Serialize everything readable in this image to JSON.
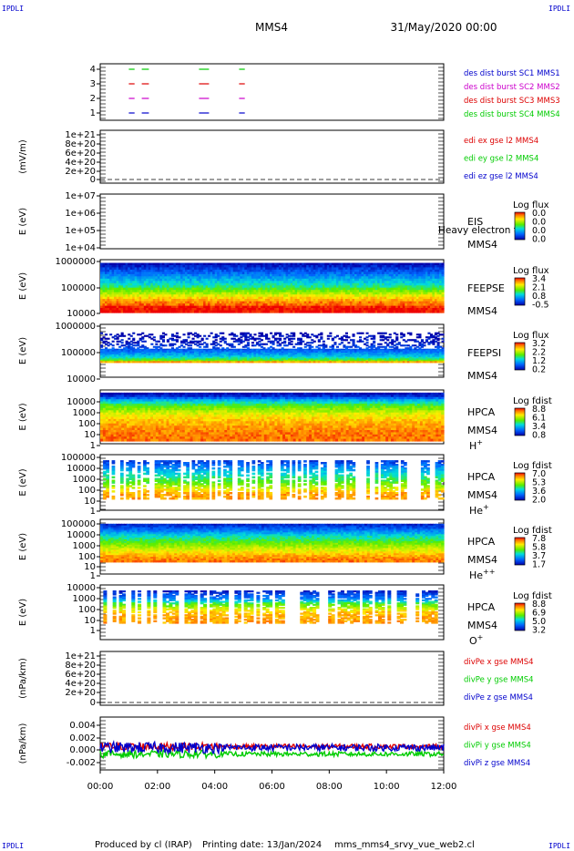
{
  "corner_tag": "IPDLI",
  "header": {
    "spacecraft": "MMS4",
    "date": "31/May/2020 00:00"
  },
  "footer": {
    "produced_by": "Produced by cl (IRAP)",
    "printing_date": "Printing date: 13/Jan/2024",
    "file": "mms_mms4_srvy_vue_web2.cl"
  },
  "colors": {
    "burst1": "#0000cc",
    "burst2": "#cc00cc",
    "burst3": "#dd0000",
    "burst4": "#00cc00",
    "x": "#dd0000",
    "y": "#00cc00",
    "z": "#0000cc"
  },
  "chart_data": {
    "type": "multi-panel time series / spectrogram",
    "time_axis": {
      "start": "2020-05-31T00:00",
      "end": "2020-05-31T12:00",
      "tick_labels": [
        "00:00",
        "02:00",
        "04:00",
        "06:00",
        "08:00",
        "10:00",
        "12:00"
      ]
    },
    "panels": [
      {
        "id": "burst",
        "y_ticks": [
          "4",
          "3",
          "2",
          "1"
        ],
        "legend": [
          {
            "text": "des dist burst SC1 MMS1",
            "color": "#0000cc"
          },
          {
            "text": "des dist burst SC2 MMS2",
            "color": "#cc00cc"
          },
          {
            "text": "des dist burst SC3 MMS3",
            "color": "#dd0000"
          },
          {
            "text": "des dist burst SC4 MMS4",
            "color": "#00cc00"
          }
        ],
        "intervals_hours": [
          [
            1.0,
            1.2
          ],
          [
            1.45,
            1.7
          ],
          [
            3.45,
            3.8
          ],
          [
            4.85,
            5.05
          ]
        ]
      },
      {
        "id": "edi",
        "ylabel": "(mV/m)",
        "y_ticks": [
          "1e+21",
          "8e+20",
          "6e+20",
          "4e+20",
          "2e+20",
          "0"
        ],
        "legend": [
          {
            "text": "edi ex gse l2 MMS4",
            "color": "#dd0000"
          },
          {
            "text": "edi ey gse l2 MMS4",
            "color": "#00cc00"
          },
          {
            "text": "edi ez gse l2 MMS4",
            "color": "#0000cc"
          }
        ]
      },
      {
        "id": "eis",
        "ylabel": "E (eV)",
        "y_ticks": [
          "1e+07",
          "1e+06",
          "1e+05",
          "1e+04"
        ],
        "instrument": [
          "EIS",
          "MMS4"
        ],
        "overlay_text": "Heavy electron to",
        "cbar_title": "Log flux",
        "cbar_ticks": [
          "0.0",
          "0.0",
          "0.0",
          "0.0"
        ]
      },
      {
        "id": "feepse",
        "ylabel": "E (eV)",
        "y_ticks": [
          "1000000",
          "100000",
          "10000"
        ],
        "instrument": [
          "FEEPSE",
          "MMS4"
        ],
        "cbar_title": "Log flux",
        "cbar_ticks": [
          "3.4",
          "2.1",
          "0.8",
          "-0.5"
        ]
      },
      {
        "id": "feepsi",
        "ylabel": "E (eV)",
        "y_ticks": [
          "1000000",
          "100000",
          "10000"
        ],
        "instrument": [
          "FEEPSI",
          "MMS4"
        ],
        "cbar_title": "Log flux",
        "cbar_ticks": [
          "3.2",
          "2.2",
          "1.2",
          "0.2"
        ]
      },
      {
        "id": "hpca_h",
        "ylabel": "E (eV)",
        "y_ticks": [
          "10000",
          "1000",
          "100",
          "10",
          "1"
        ],
        "instrument": [
          "HPCA",
          "MMS4"
        ],
        "species": {
          "base": "H",
          "sup": "+"
        },
        "cbar_title": "Log fdist",
        "cbar_ticks": [
          "8.8",
          "6.1",
          "3.4",
          "0.8"
        ]
      },
      {
        "id": "hpca_he1",
        "ylabel": "E (eV)",
        "y_ticks": [
          "100000",
          "10000",
          "1000",
          "100",
          "10",
          "1"
        ],
        "instrument": [
          "HPCA",
          "MMS4"
        ],
        "species": {
          "base": "He",
          "sup": "+"
        },
        "cbar_title": "Log fdist",
        "cbar_ticks": [
          "7.0",
          "5.3",
          "3.6",
          "2.0"
        ]
      },
      {
        "id": "hpca_he2",
        "ylabel": "E (eV)",
        "y_ticks": [
          "100000",
          "10000",
          "1000",
          "100",
          "10",
          "1"
        ],
        "instrument": [
          "HPCA",
          "MMS4"
        ],
        "species": {
          "base": "He",
          "sup": "++"
        },
        "cbar_title": "Log fdist",
        "cbar_ticks": [
          "7.8",
          "5.8",
          "3.7",
          "1.7"
        ]
      },
      {
        "id": "hpca_o",
        "ylabel": "E (eV)",
        "y_ticks": [
          "10000",
          "1000",
          "100",
          "10",
          "1"
        ],
        "instrument": [
          "HPCA",
          "MMS4"
        ],
        "species": {
          "base": "O",
          "sup": "+"
        },
        "cbar_title": "Log fdist",
        "cbar_ticks": [
          "8.8",
          "6.9",
          "5.0",
          "3.2"
        ]
      },
      {
        "id": "divpe",
        "ylabel": "(nPa/km)",
        "y_ticks": [
          "1e+21",
          "8e+20",
          "6e+20",
          "4e+20",
          "2e+20",
          "0"
        ],
        "legend": [
          {
            "text": "divPe x gse MMS4",
            "color": "#dd0000"
          },
          {
            "text": "divPe y gse MMS4",
            "color": "#00cc00"
          },
          {
            "text": "divPe z gse MMS4",
            "color": "#0000cc"
          }
        ]
      },
      {
        "id": "divpi",
        "ylabel": "(nPa/km)",
        "y_ticks": [
          "0.004",
          "0.002",
          "0.000",
          "-0.002"
        ],
        "y_range": [
          -0.0035,
          0.0055
        ],
        "legend": [
          {
            "text": "divPi x gse MMS4",
            "color": "#dd0000"
          },
          {
            "text": "divPi y gse MMS4",
            "color": "#00cc00"
          },
          {
            "text": "divPi z gse MMS4",
            "color": "#0000cc"
          }
        ],
        "series": [
          {
            "component": "x",
            "mean": 0.0005,
            "spread": 0.0008,
            "color": "#dd0000"
          },
          {
            "component": "y",
            "mean": -0.0008,
            "spread": 0.0008,
            "color": "#00cc00"
          },
          {
            "component": "z",
            "mean": 0.0003,
            "spread": 0.0012,
            "color": "#0000cc"
          }
        ]
      }
    ]
  }
}
